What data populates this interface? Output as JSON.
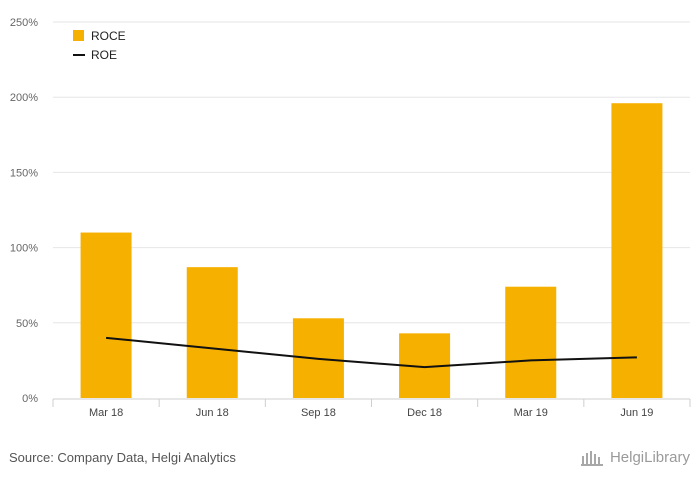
{
  "chart_data": {
    "type": "bar",
    "categories": [
      "Mar 18",
      "Jun 18",
      "Sep 18",
      "Dec 18",
      "Mar 19",
      "Jun 19"
    ],
    "series": [
      {
        "name": "ROCE",
        "kind": "bar",
        "color": "#f6b000",
        "values": [
          110,
          87,
          53,
          43,
          74,
          196
        ]
      },
      {
        "name": "ROE",
        "kind": "line",
        "color": "#111111",
        "values": [
          40,
          33,
          26,
          20.5,
          25,
          27
        ]
      }
    ],
    "y_ticks": [
      "0%",
      "50%",
      "100%",
      "150%",
      "200%",
      "250%"
    ],
    "ylim": [
      0,
      250
    ],
    "grid": true,
    "legend_position": "top-left"
  },
  "footer": {
    "source": "Source: Company Data, Helgi Analytics",
    "brand": "HelgiLibrary"
  }
}
